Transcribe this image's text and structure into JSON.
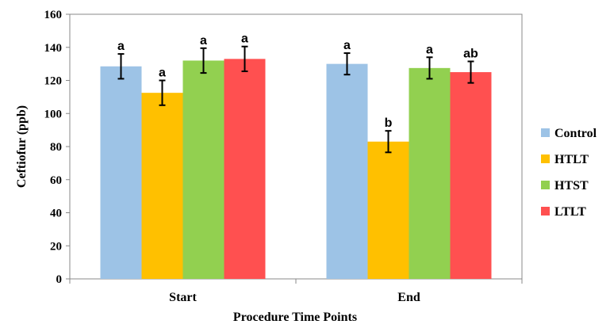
{
  "chart_data": {
    "type": "bar",
    "categories": [
      "Start",
      "End"
    ],
    "series": [
      {
        "name": "Control",
        "color": "#9DC3E6",
        "values": [
          128.5,
          130
        ],
        "errors": [
          7.5,
          6.5
        ],
        "labels": [
          "a",
          "a"
        ]
      },
      {
        "name": "HTLT",
        "color": "#FFC000",
        "values": [
          112.5,
          83
        ],
        "errors": [
          7.5,
          6.5
        ],
        "labels": [
          "a",
          "b"
        ]
      },
      {
        "name": "HTST",
        "color": "#92D050",
        "values": [
          132,
          127.5
        ],
        "errors": [
          7.5,
          6.5
        ],
        "labels": [
          "a",
          "a"
        ]
      },
      {
        "name": "LTLT",
        "color": "#FF5050",
        "values": [
          133,
          125
        ],
        "errors": [
          7.5,
          6.5
        ],
        "labels": [
          "a",
          "ab"
        ]
      }
    ],
    "xlabel": "Procedure Time Points",
    "ylabel": "Ceftiofur  (ppb)",
    "ylim": [
      0,
      160
    ],
    "yticks": [
      0,
      20,
      40,
      60,
      80,
      100,
      120,
      140,
      160
    ],
    "grid": false,
    "legend": "right"
  }
}
